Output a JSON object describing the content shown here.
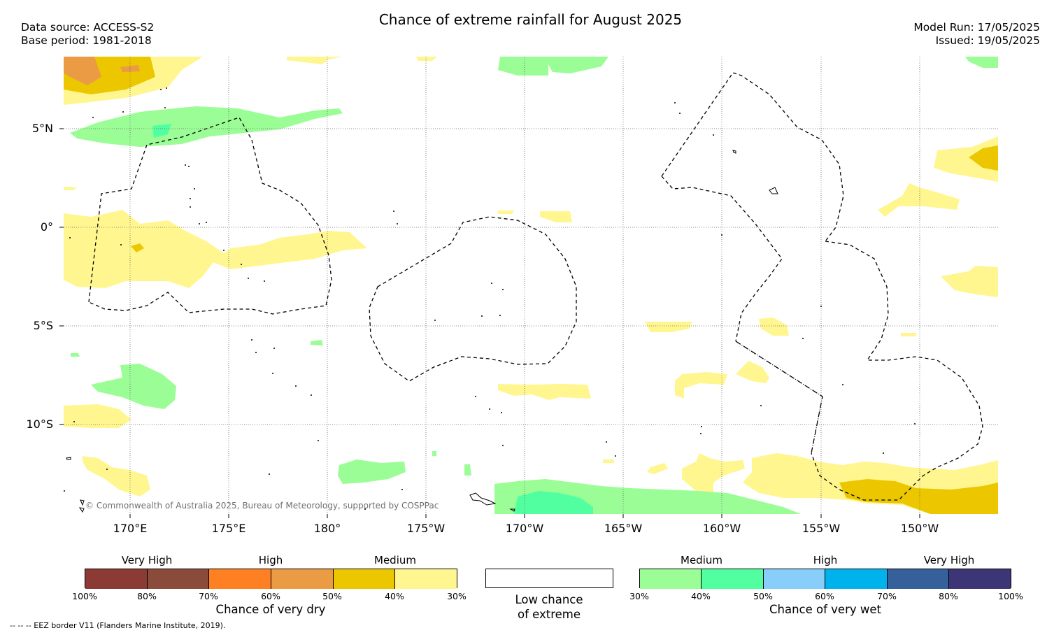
{
  "header": {
    "title": "Chance of extreme rainfall for August 2025",
    "data_source": "Data source: ACCESS-S2",
    "base_period": "Base period: 1981-2018",
    "model_run": "Model Run: 17/05/2025",
    "issued": "Issued: 19/05/2025"
  },
  "map": {
    "lat_labels": [
      "5°N",
      "0°",
      "5°S",
      "10°S"
    ],
    "lon_labels": [
      "170°E",
      "175°E",
      "180°",
      "175°W",
      "170°W",
      "165°W",
      "160°W",
      "155°W",
      "150°W"
    ],
    "copyright": "© Commonwealth of Australia 2025, Bureau of Meteorology, supported by COSPPac"
  },
  "legend_dry": {
    "groups": [
      "Very High",
      "High",
      "Medium"
    ],
    "ticks": [
      "100%",
      "80%",
      "70%",
      "60%",
      "50%",
      "40%",
      "30%"
    ],
    "colors": [
      "#8b3a34",
      "#8b4b3a",
      "#ff7f23",
      "#ec9b45",
      "#ecc700",
      "#fff68f"
    ],
    "title": "Chance of very dry"
  },
  "legend_low": {
    "title_line1": "Low chance",
    "title_line2": "of extreme"
  },
  "legend_wet": {
    "groups": [
      "Medium",
      "High",
      "Very High"
    ],
    "ticks": [
      "30%",
      "40%",
      "50%",
      "60%",
      "70%",
      "80%",
      "100%"
    ],
    "colors": [
      "#9bfd95",
      "#52ffa0",
      "#87cefa",
      "#00b2ec",
      "#35609b",
      "#3c3676"
    ],
    "title": "Chance of very wet"
  },
  "footnote": "-- -- -- EEZ border V11 (Flanders Marine Institute, 2019)."
}
